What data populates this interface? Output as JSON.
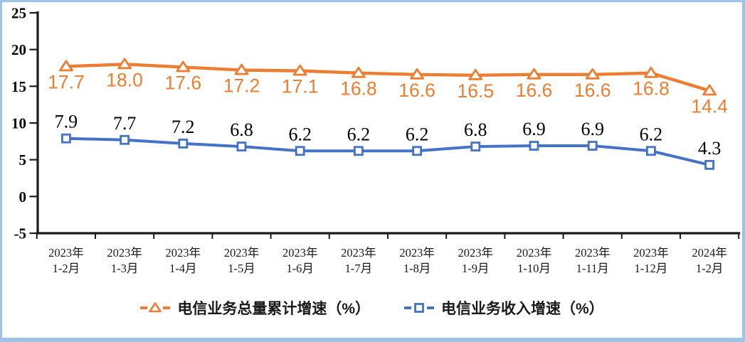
{
  "frame": {
    "border_color": "#9DC3E6",
    "background": "#FFFFFF"
  },
  "chart_data": {
    "type": "line",
    "categories": [
      [
        "2023年",
        "1-2月"
      ],
      [
        "2023年",
        "1-3月"
      ],
      [
        "2023年",
        "1-4月"
      ],
      [
        "2023年",
        "1-5月"
      ],
      [
        "2023年",
        "1-6月"
      ],
      [
        "2023年",
        "1-7月"
      ],
      [
        "2023年",
        "1-8月"
      ],
      [
        "2023年",
        "1-9月"
      ],
      [
        "2023年",
        "1-10月"
      ],
      [
        "2023年",
        "1-11月"
      ],
      [
        "2023年",
        "1-12月"
      ],
      [
        "2024年",
        "1-2月"
      ]
    ],
    "series": [
      {
        "name": "电信业务总量累计增速（%）",
        "color": "#ED7D31",
        "marker": "triangle",
        "label_position": "below",
        "label_color": "#ED7D31",
        "values": [
          17.7,
          18.0,
          17.6,
          17.2,
          17.1,
          16.8,
          16.6,
          16.5,
          16.6,
          16.6,
          16.8,
          14.4
        ]
      },
      {
        "name": "电信业务收入增速（%）",
        "color": "#4472C4",
        "marker": "square",
        "label_position": "above",
        "label_color": "#000000",
        "values": [
          7.9,
          7.7,
          7.2,
          6.8,
          6.2,
          6.2,
          6.2,
          6.8,
          6.9,
          6.9,
          6.2,
          4.3
        ]
      }
    ],
    "title": "",
    "xlabel": "",
    "ylabel": "",
    "ylim": [
      -5,
      25
    ],
    "yticks": [
      25,
      20,
      15,
      10,
      5,
      0,
      -5
    ],
    "grid": false,
    "legend_position": "bottom",
    "axis_color": "#1a1a1a"
  }
}
